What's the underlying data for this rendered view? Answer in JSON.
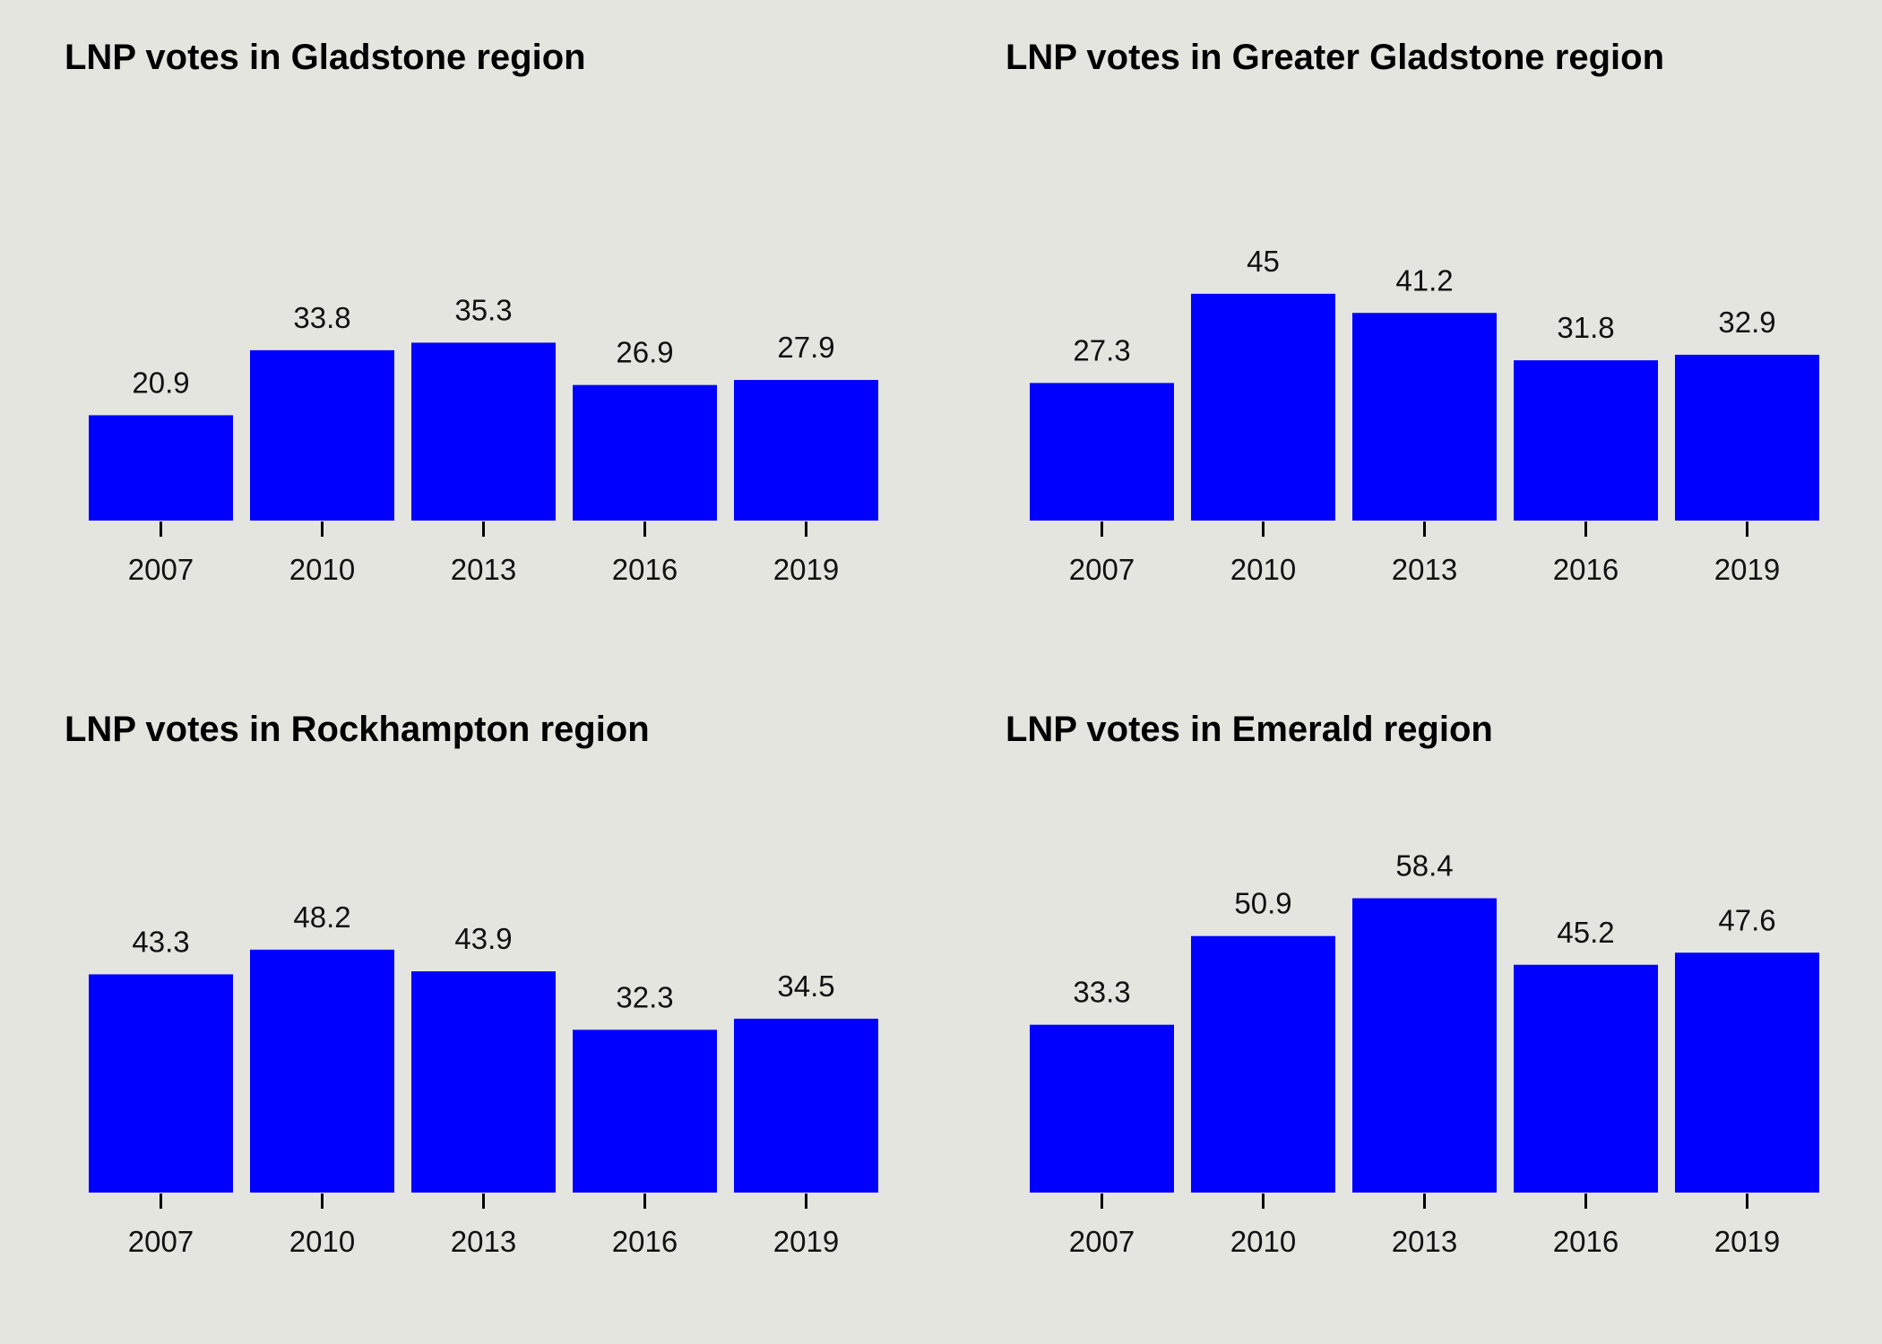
{
  "colors": {
    "background": "#e5e5e0",
    "bar": "#0000ff",
    "axis": "#000000",
    "text": "#000000"
  },
  "chart_data": [
    {
      "type": "bar",
      "title": "LNP votes in Gladstone region",
      "categories": [
        "2007",
        "2010",
        "2013",
        "2016",
        "2019"
      ],
      "values": [
        20.9,
        33.8,
        35.3,
        26.9,
        27.9
      ],
      "value_labels": [
        "20.9",
        "33.8",
        "35.3",
        "26.9",
        "27.9"
      ],
      "xlabel": "",
      "ylabel": "",
      "ylim": [
        0,
        60
      ],
      "grid": false,
      "y_axis_visible": false
    },
    {
      "type": "bar",
      "title": "LNP votes in Greater Gladstone region",
      "categories": [
        "2007",
        "2010",
        "2013",
        "2016",
        "2019"
      ],
      "values": [
        27.3,
        45,
        41.2,
        31.8,
        32.9
      ],
      "value_labels": [
        "27.3",
        "45",
        "41.2",
        "31.8",
        "32.9"
      ],
      "xlabel": "",
      "ylabel": "",
      "ylim": [
        0,
        60
      ],
      "grid": false,
      "y_axis_visible": false
    },
    {
      "type": "bar",
      "title": "LNP votes in Rockhampton region",
      "categories": [
        "2007",
        "2010",
        "2013",
        "2016",
        "2019"
      ],
      "values": [
        43.3,
        48.2,
        43.9,
        32.3,
        34.5
      ],
      "value_labels": [
        "43.3",
        "48.2",
        "43.9",
        "32.3",
        "34.5"
      ],
      "xlabel": "",
      "ylabel": "",
      "ylim": [
        0,
        60
      ],
      "grid": false,
      "y_axis_visible": false
    },
    {
      "type": "bar",
      "title": "LNP votes in Emerald region",
      "categories": [
        "2007",
        "2010",
        "2013",
        "2016",
        "2019"
      ],
      "values": [
        33.3,
        50.9,
        58.4,
        45.2,
        47.6
      ],
      "value_labels": [
        "33.3",
        "50.9",
        "58.4",
        "45.2",
        "47.6"
      ],
      "xlabel": "",
      "ylabel": "",
      "ylim": [
        0,
        60
      ],
      "grid": false,
      "y_axis_visible": false
    }
  ]
}
